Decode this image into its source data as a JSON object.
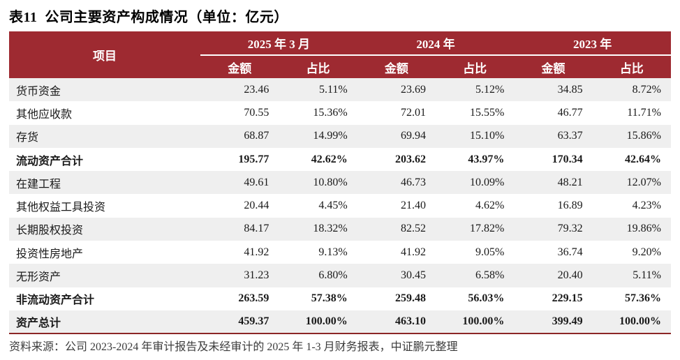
{
  "title": "表11  公司主要资产构成情况（单位：亿元）",
  "table": {
    "item_header": "项目",
    "groups": [
      {
        "label": "2025 年 3 月"
      },
      {
        "label": "2024 年"
      },
      {
        "label": "2023 年"
      }
    ],
    "sub_headers": {
      "amount": "金额",
      "share": "占比"
    },
    "rows": [
      {
        "name": "货币资金",
        "bold": false,
        "values": [
          "23.46",
          "5.11%",
          "23.69",
          "5.12%",
          "34.85",
          "8.72%"
        ]
      },
      {
        "name": "其他应收款",
        "bold": false,
        "values": [
          "70.55",
          "15.36%",
          "72.01",
          "15.55%",
          "46.77",
          "11.71%"
        ]
      },
      {
        "name": "存货",
        "bold": false,
        "values": [
          "68.87",
          "14.99%",
          "69.94",
          "15.10%",
          "63.37",
          "15.86%"
        ]
      },
      {
        "name": "流动资产合计",
        "bold": true,
        "values": [
          "195.77",
          "42.62%",
          "203.62",
          "43.97%",
          "170.34",
          "42.64%"
        ]
      },
      {
        "name": "在建工程",
        "bold": false,
        "values": [
          "49.61",
          "10.80%",
          "46.73",
          "10.09%",
          "48.21",
          "12.07%"
        ]
      },
      {
        "name": "其他权益工具投资",
        "bold": false,
        "values": [
          "20.44",
          "4.45%",
          "21.40",
          "4.62%",
          "16.89",
          "4.23%"
        ]
      },
      {
        "name": "长期股权投资",
        "bold": false,
        "values": [
          "84.17",
          "18.32%",
          "82.52",
          "17.82%",
          "79.32",
          "19.86%"
        ]
      },
      {
        "name": "投资性房地产",
        "bold": false,
        "values": [
          "41.92",
          "9.13%",
          "41.92",
          "9.05%",
          "36.74",
          "9.20%"
        ]
      },
      {
        "name": "无形资产",
        "bold": false,
        "values": [
          "31.23",
          "6.80%",
          "30.45",
          "6.58%",
          "20.40",
          "5.11%"
        ]
      },
      {
        "name": "非流动资产合计",
        "bold": true,
        "values": [
          "263.59",
          "57.38%",
          "259.48",
          "56.03%",
          "229.15",
          "57.36%"
        ]
      },
      {
        "name": "资产总计",
        "bold": true,
        "values": [
          "459.37",
          "100.00%",
          "463.10",
          "100.00%",
          "399.49",
          "100.00%"
        ]
      }
    ]
  },
  "footer": "资料来源：公司 2023-2024 年审计报告及未经审计的 2025 年 1-3 月财务报表，中证鹏元整理",
  "colors": {
    "header_bg": "#9e2a31",
    "row_alt": "#efefef",
    "rule": "#8c2626"
  }
}
